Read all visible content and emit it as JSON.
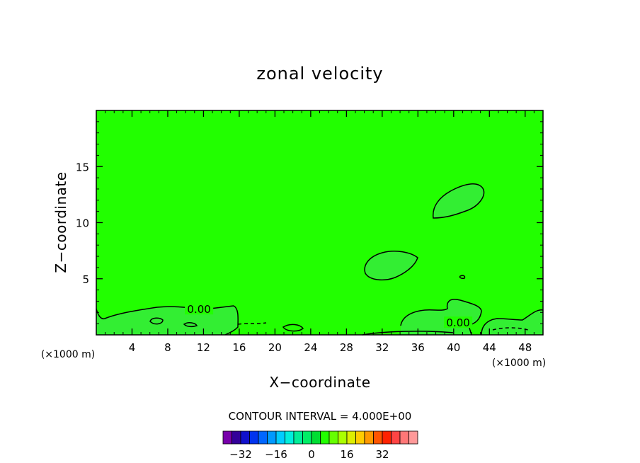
{
  "chart_data": {
    "type": "contour",
    "title": "zonal velocity",
    "xlabel": "X−coordinate",
    "ylabel": "Z−coordinate",
    "x_unit_left": "(×1000 m)",
    "x_unit_right": "(×1000 m)",
    "xlim": [
      0,
      50
    ],
    "ylim": [
      0,
      20
    ],
    "xticks": [
      4,
      8,
      12,
      16,
      20,
      24,
      28,
      32,
      36,
      40,
      44,
      48
    ],
    "yticks": [
      5,
      10,
      15
    ],
    "background_fill_color": "#22ff00",
    "positive_fill_color": "#33ee33",
    "contour_labels": [
      {
        "text": "0.00",
        "x": 11.5,
        "y": 2.2
      },
      {
        "text": "0.00",
        "x": 40.5,
        "y": 1.0
      }
    ],
    "footer": "CONTOUR INTERVAL = 4.000E+00",
    "colorbar": {
      "colors": [
        "#7700aa",
        "#330099",
        "#1111cc",
        "#0033ee",
        "#0066ff",
        "#0099ff",
        "#00ccff",
        "#00eedd",
        "#00ee99",
        "#00ee66",
        "#00dd33",
        "#22ff00",
        "#66ff00",
        "#aaff00",
        "#ddee00",
        "#ffcc00",
        "#ff9900",
        "#ff5500",
        "#ff2200",
        "#ff4444",
        "#ff7777",
        "#ff9999"
      ],
      "tick_labels": [
        "−32",
        "−16",
        "0",
        "16",
        "32"
      ]
    }
  }
}
